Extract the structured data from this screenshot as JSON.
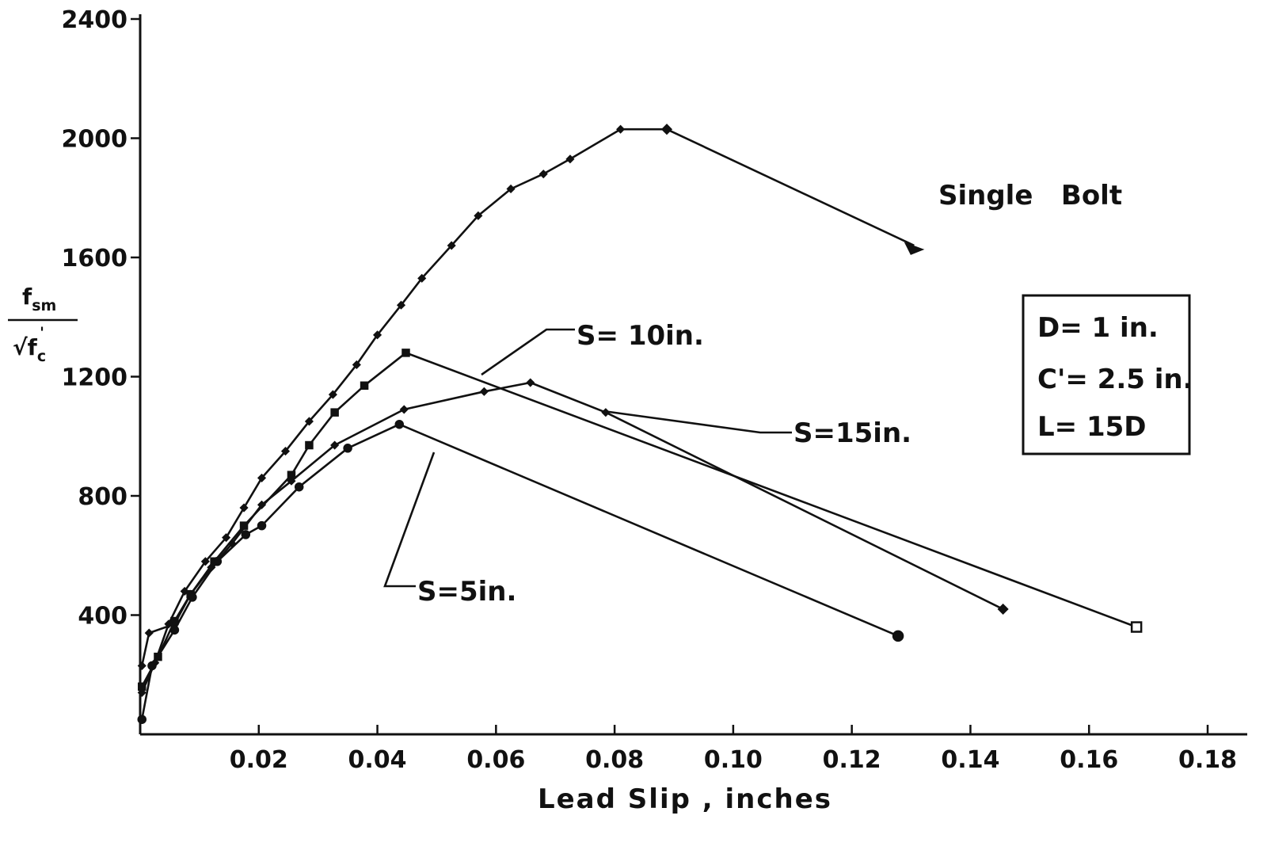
{
  "chart_data": {
    "type": "line",
    "title": "",
    "xlabel": "Lead Slip , inches",
    "ylabel_numerator": "f",
    "ylabel_numerator_sub": "sm",
    "ylabel_denominator": "√f",
    "ylabel_denominator_sub": "c",
    "ylabel_denominator_sup": "'",
    "xlim": [
      0,
      0.18
    ],
    "ylim": [
      0,
      2400
    ],
    "x_ticks": [
      0.02,
      0.04,
      0.06,
      0.08,
      0.1,
      0.12,
      0.14,
      0.16,
      0.18
    ],
    "x_tick_labels": [
      "0.02",
      "0.04",
      "0.06",
      "0.08",
      "0.10",
      "0.12",
      "0.14",
      "0.16",
      "0.18"
    ],
    "y_ticks": [
      400,
      800,
      1200,
      1600,
      2000,
      2400
    ],
    "y_tick_labels": [
      "400",
      "800",
      "1200",
      "1600",
      "2000",
      "2400"
    ],
    "grid": false,
    "series": [
      {
        "marker": "diamond",
        "x": [
          0.0003,
          0.0025,
          0.0048,
          0.0075,
          0.011,
          0.0145,
          0.0175,
          0.0205,
          0.0245,
          0.0285,
          0.0325,
          0.0365,
          0.04,
          0.044,
          0.0475,
          0.0525,
          0.057,
          0.0625,
          0.068,
          0.0725,
          0.081,
          0.0888
        ],
        "y": [
          140,
          240,
          370,
          480,
          580,
          660,
          760,
          860,
          950,
          1050,
          1140,
          1240,
          1340,
          1440,
          1530,
          1640,
          1740,
          1830,
          1880,
          1930,
          2030,
          2030
        ]
      },
      {
        "marker": "triangle",
        "x": [
          0.0888,
          0.1305
        ],
        "y": [
          2030,
          1640
        ]
      },
      {
        "name": "S= 10in.",
        "marker": "square",
        "x": [
          0.0003,
          0.003,
          0.0058,
          0.0085,
          0.0125,
          0.0175,
          0.0255,
          0.0285,
          0.0328,
          0.0378,
          0.0448,
          0.168
        ],
        "y": [
          160,
          260,
          380,
          470,
          580,
          700,
          870,
          970,
          1080,
          1170,
          1280,
          360
        ]
      },
      {
        "name": "S=15in.",
        "marker": "diamond",
        "x": [
          0.0003,
          0.0015,
          0.0058,
          0.0085,
          0.012,
          0.0155,
          0.0205,
          0.0255,
          0.0328,
          0.0445,
          0.058,
          0.0658,
          0.0785,
          0.1455
        ],
        "y": [
          230,
          340,
          370,
          470,
          560,
          640,
          770,
          850,
          970,
          1090,
          1150,
          1180,
          1080,
          420
        ]
      },
      {
        "name": "S=5in.",
        "marker": "circle",
        "x": [
          0.0003,
          0.002,
          0.0058,
          0.0088,
          0.013,
          0.0178,
          0.0205,
          0.0268,
          0.035,
          0.0437,
          0.1278
        ],
        "y": [
          50,
          230,
          350,
          460,
          580,
          670,
          700,
          830,
          960,
          1040,
          330
        ]
      }
    ],
    "annotations": {
      "single_bolt": "Single   Bolt",
      "label_s10": "S= 10in.",
      "label_s15": "S=15in.",
      "label_s5": "S=5in.",
      "legend_box": [
        "D= 1 in.",
        "C'= 2.5 in.",
        "L= 15D"
      ]
    }
  }
}
